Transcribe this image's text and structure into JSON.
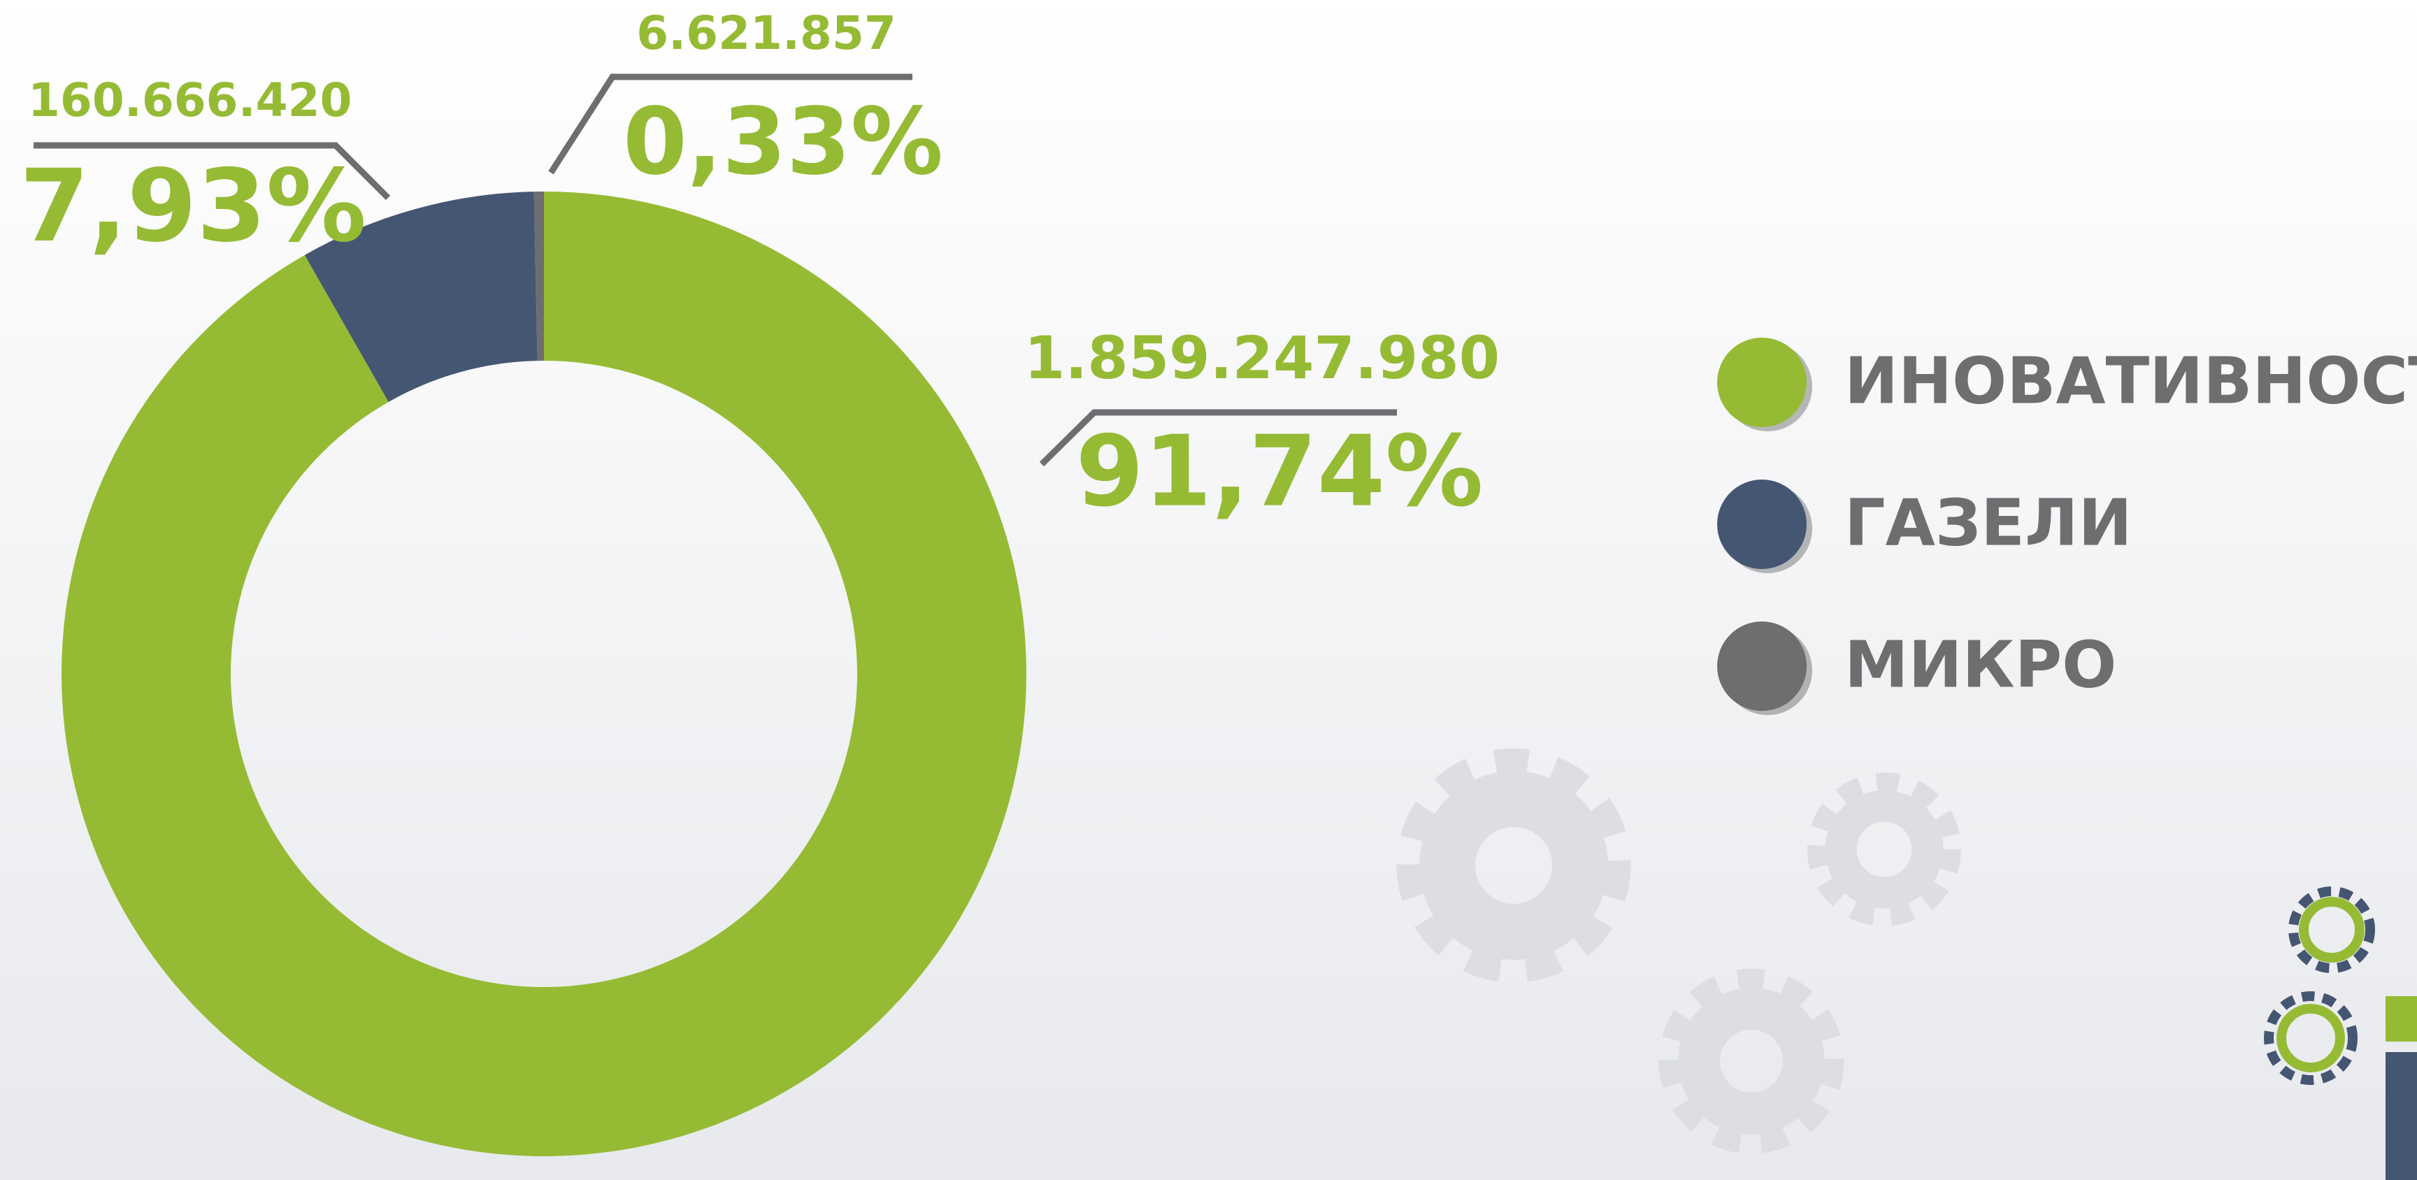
{
  "chart_data": {
    "type": "pie",
    "donut": true,
    "categories": [
      "ИНОВАТИВНОСТ",
      "ГАЗЕЛИ",
      "МИКРО"
    ],
    "values": [
      91.74,
      7.93,
      0.33
    ],
    "value_labels": [
      "91,74%",
      "7,93%",
      "0,33%"
    ],
    "amounts": [
      1859247980,
      160666420,
      6621857
    ],
    "amount_labels": [
      "1.859.247.980",
      "160.666.420",
      "6.621.857"
    ],
    "colors": [
      "#95bb34",
      "#455673",
      "#6d6e70"
    ],
    "legend": true
  }
}
